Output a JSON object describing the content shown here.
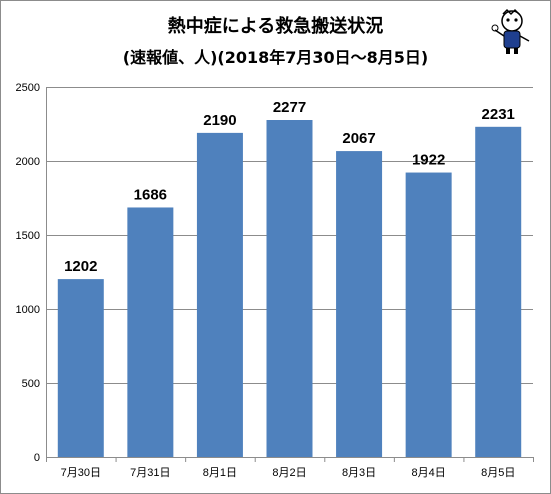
{
  "chart_data": {
    "type": "bar",
    "title": "熱中症による救急搬送状況",
    "subtitle": "(速報値、人)(2018年7月30日〜8月5日)",
    "categories": [
      "7月30日",
      "7月31日",
      "8月1日",
      "8月2日",
      "8月3日",
      "8月4日",
      "8月5日"
    ],
    "values": [
      1202,
      1686,
      2190,
      2277,
      2067,
      1922,
      2231
    ],
    "yticks": [
      "0",
      "500",
      "1000",
      "1500",
      "2000",
      "2500"
    ],
    "ylim": [
      0,
      2500
    ],
    "grid": true,
    "bar_color": "#4f81bd"
  }
}
